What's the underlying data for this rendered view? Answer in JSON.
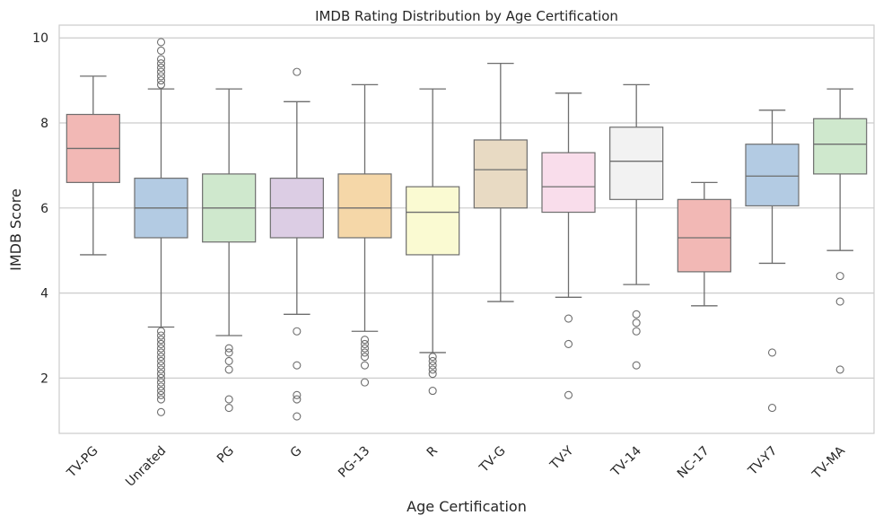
{
  "chart_data": {
    "type": "boxplot",
    "title": "IMDB Rating Distribution by Age Certification",
    "xlabel": "Age Certification",
    "ylabel": "IMDB Score",
    "ylim": [
      0.7,
      10.3
    ],
    "yticks": [
      2,
      4,
      6,
      8,
      10
    ],
    "grid": "horizontal",
    "categories": [
      "TV-PG",
      "Unrated",
      "PG",
      "G",
      "PG-13",
      "R",
      "TV-G",
      "TV-Y",
      "TV-14",
      "NC-17",
      "TV-Y7",
      "TV-MA"
    ],
    "colors": [
      "#f2b8b5",
      "#b3cbe3",
      "#cfe8cd",
      "#dccde4",
      "#f5d7a8",
      "#fafad2",
      "#e8dac3",
      "#f9ddeb",
      "#f2f2f2",
      "#f2b8b5",
      "#b3cbe3",
      "#cfe8cd"
    ],
    "boxes": [
      {
        "whislo": 4.9,
        "q1": 6.6,
        "med": 7.4,
        "q3": 8.2,
        "whishi": 9.1,
        "fliers": []
      },
      {
        "whislo": 3.2,
        "q1": 5.3,
        "med": 6.0,
        "q3": 6.7,
        "whishi": 8.8,
        "fliers": [
          9.9,
          9.7,
          9.5,
          9.4,
          9.3,
          9.2,
          9.1,
          9.0,
          8.9,
          3.1,
          3.0,
          2.9,
          2.8,
          2.7,
          2.6,
          2.5,
          2.4,
          2.3,
          2.2,
          2.1,
          2.0,
          1.9,
          1.8,
          1.7,
          1.6,
          1.5,
          1.2
        ]
      },
      {
        "whislo": 3.0,
        "q1": 5.2,
        "med": 6.0,
        "q3": 6.8,
        "whishi": 8.8,
        "fliers": [
          2.7,
          2.6,
          2.4,
          2.2,
          1.5,
          1.3
        ]
      },
      {
        "whislo": 3.5,
        "q1": 5.3,
        "med": 6.0,
        "q3": 6.7,
        "whishi": 8.5,
        "fliers": [
          9.2,
          3.1,
          2.3,
          1.6,
          1.5,
          1.1
        ]
      },
      {
        "whislo": 3.1,
        "q1": 5.3,
        "med": 6.0,
        "q3": 6.8,
        "whishi": 8.9,
        "fliers": [
          2.9,
          2.8,
          2.7,
          2.6,
          2.5,
          2.3,
          1.9
        ]
      },
      {
        "whislo": 2.6,
        "q1": 4.9,
        "med": 5.9,
        "q3": 6.5,
        "whishi": 8.8,
        "fliers": [
          2.5,
          2.4,
          2.3,
          2.2,
          2.1,
          1.7
        ]
      },
      {
        "whislo": 3.8,
        "q1": 6.0,
        "med": 6.9,
        "q3": 7.6,
        "whishi": 9.4,
        "fliers": []
      },
      {
        "whislo": 3.9,
        "q1": 5.9,
        "med": 6.5,
        "q3": 7.3,
        "whishi": 8.7,
        "fliers": [
          3.4,
          2.8,
          1.6
        ]
      },
      {
        "whislo": 4.2,
        "q1": 6.2,
        "med": 7.1,
        "q3": 7.9,
        "whishi": 8.9,
        "fliers": [
          3.5,
          3.3,
          3.1,
          2.3
        ]
      },
      {
        "whislo": 3.7,
        "q1": 4.5,
        "med": 5.3,
        "q3": 6.2,
        "whishi": 6.6,
        "fliers": []
      },
      {
        "whislo": 4.7,
        "q1": 6.05,
        "med": 6.75,
        "q3": 7.5,
        "whishi": 8.3,
        "fliers": [
          2.6,
          1.3
        ]
      },
      {
        "whislo": 5.0,
        "q1": 6.8,
        "med": 7.5,
        "q3": 8.1,
        "whishi": 8.8,
        "fliers": [
          4.4,
          3.8,
          2.2
        ]
      }
    ]
  }
}
